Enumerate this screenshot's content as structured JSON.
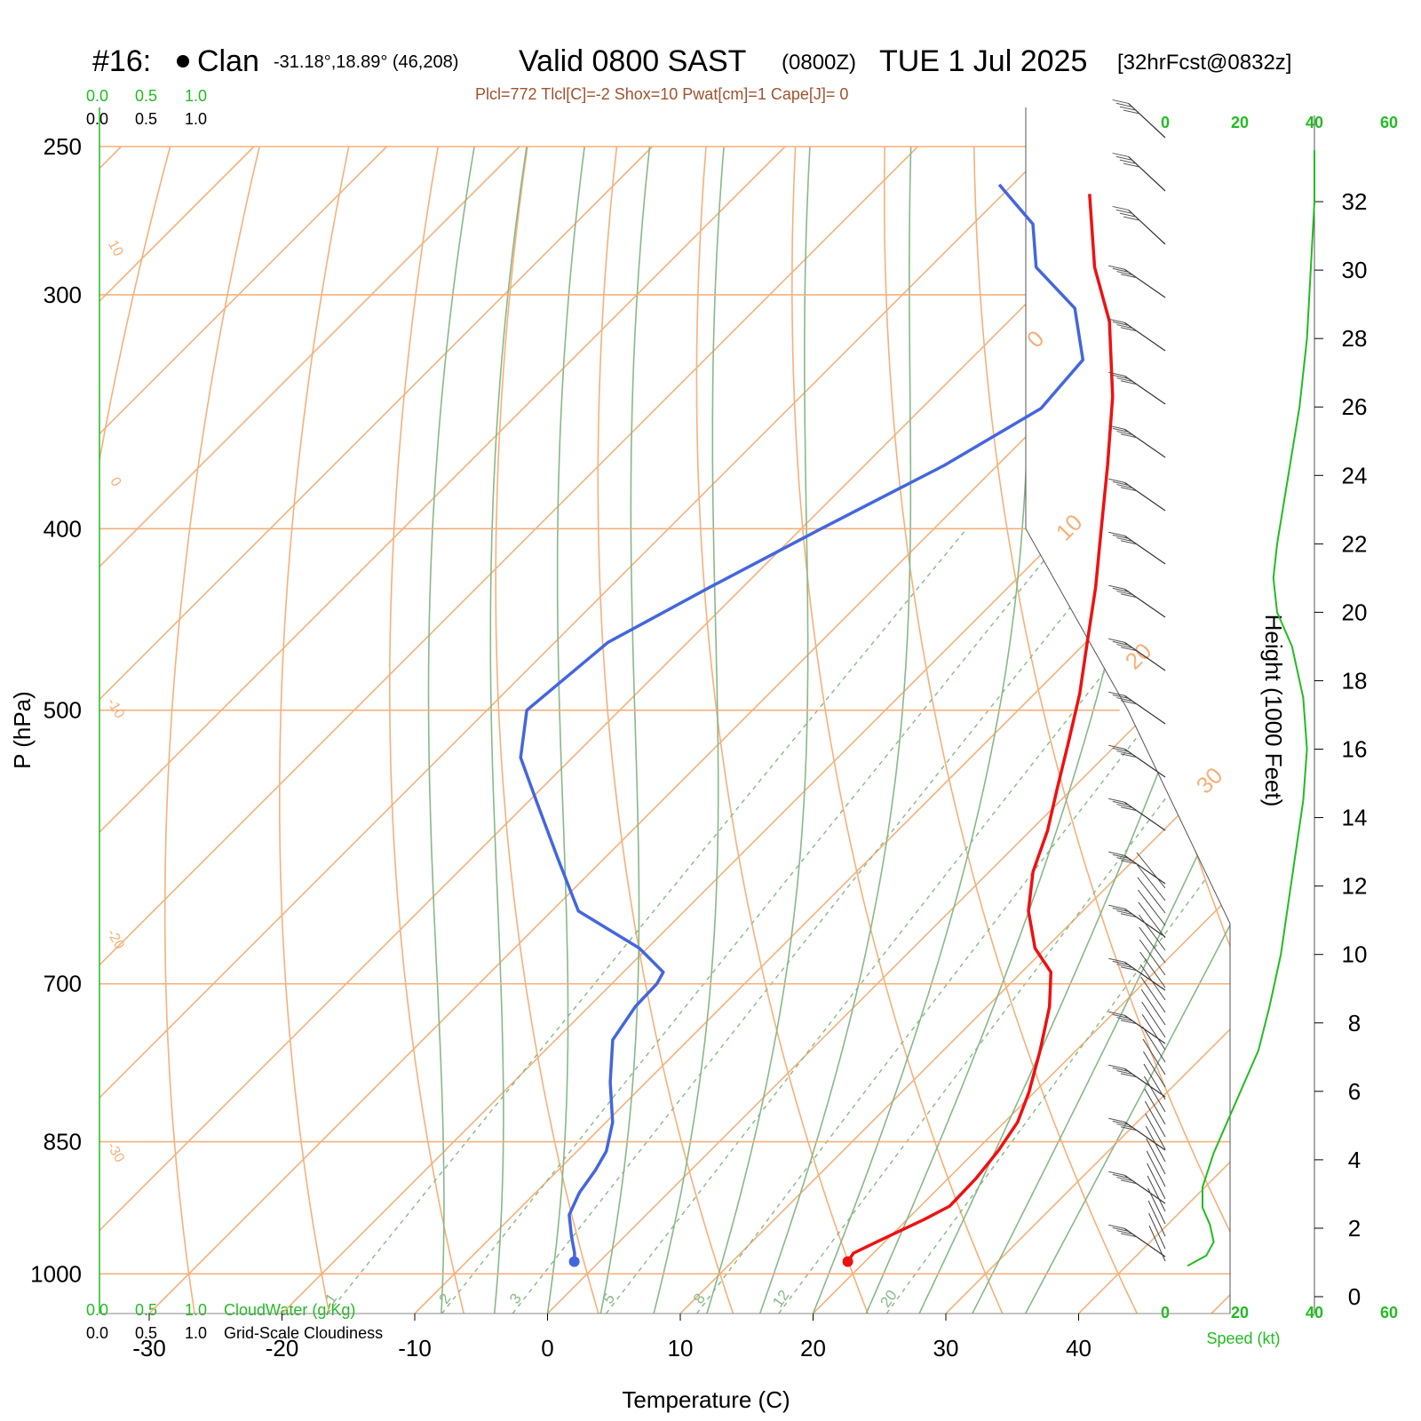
{
  "header": {
    "station": "#16:",
    "station_name": "Clan",
    "coords": "-31.18°,18.89° (46,208)",
    "valid": "Valid 0800 SAST",
    "zulu": "(0800Z)",
    "date": "TUE 1 Jul 2025",
    "forecast": "[32hrFcst@0832z]"
  },
  "indices": "Plcl=772 Tlcl[C]=-2 Shox=10 Pwat[cm]=1 Cape[J]= 0",
  "scales": {
    "cloudwater_ticks": [
      "0.0",
      "0.5",
      "1.0"
    ],
    "cloudiness_ticks": [
      "0.0",
      "0.5",
      "1.0"
    ],
    "cloudwater_label": "CloudWater (g/Kg)",
    "cloudiness_label": "Grid-Scale Cloudiness",
    "speed_ticks": [
      "0",
      "20",
      "40",
      "60"
    ],
    "speed_label": "Speed (kt)"
  },
  "colors": {
    "temperature": "#ee1111",
    "dewpoint": "#4466dd",
    "isotherm": "#f5b07a",
    "adiabat": "#88b888",
    "mixing_ratio": "#88b888",
    "cloudwater": "#22bb22",
    "speed": "#22bb22"
  },
  "chart_data": {
    "type": "line",
    "title": "Valid 0800 SAST (0800Z) TUE 1 Jul 2025",
    "xlabel": "Temperature (C)",
    "ylabel": "P (hPa)",
    "y2label": "Height (1000 Feet)",
    "x_ticks": [
      "-30",
      "-20",
      "-10",
      "0",
      "10",
      "20",
      "30",
      "40"
    ],
    "y_ticks": [
      "250",
      "300",
      "400",
      "500",
      "700",
      "850",
      "1000"
    ],
    "height_ticks": [
      "0",
      "2",
      "4",
      "6",
      "8",
      "10",
      "12",
      "14",
      "16",
      "18",
      "20",
      "22",
      "24",
      "26",
      "28",
      "30",
      "32"
    ],
    "isotherm_labels": [
      "10",
      "0",
      "-10",
      "-20",
      "-30",
      "0",
      "10",
      "20",
      "30"
    ],
    "mixing_ratio_labels": [
      "1",
      "2",
      "3",
      "5",
      "8",
      "12",
      "20"
    ],
    "series": [
      {
        "name": "temperature",
        "p": [
          985,
          975,
          960,
          935,
          920,
          890,
          860,
          830,
          800,
          760,
          720,
          690,
          670,
          640,
          610,
          580,
          550,
          520,
          490,
          460,
          430,
          400,
          370,
          340,
          310,
          290,
          265
        ],
        "t": [
          18.7,
          18.5,
          19.5,
          21.3,
          22.2,
          22.1,
          21.7,
          21.0,
          19.6,
          17.3,
          14.7,
          12.2,
          9.2,
          5.9,
          3.3,
          1.3,
          -1.2,
          -3.8,
          -6.6,
          -9.9,
          -13.4,
          -17.4,
          -21.7,
          -26.5,
          -32.4,
          -37.6,
          -43.5
        ]
      },
      {
        "name": "dewpoint",
        "p": [
          985,
          975,
          955,
          930,
          905,
          880,
          860,
          830,
          790,
          750,
          720,
          700,
          690,
          670,
          640,
          600,
          560,
          530,
          500,
          460,
          430,
          400,
          370,
          345,
          325,
          305,
          290,
          275,
          262
        ],
        "t": [
          -1.9,
          -2.5,
          -4.0,
          -5.8,
          -6.7,
          -7.2,
          -7.8,
          -9.5,
          -12.7,
          -15.7,
          -16.5,
          -16.6,
          -17.0,
          -20.6,
          -28.0,
          -33.5,
          -39.3,
          -43.9,
          -47.0,
          -46.0,
          -42.5,
          -38.5,
          -34.0,
          -31.0,
          -31.5,
          -36.0,
          -42.0,
          -45.5,
          -51.0
        ]
      },
      {
        "name": "speed",
        "z": [
          0.9,
          1.2,
          1.6,
          2.1,
          2.6,
          3.2,
          4.2,
          5.2,
          6.2,
          7.2,
          8.5,
          10,
          11.5,
          13,
          14.5,
          16,
          17.5,
          19,
          20,
          21,
          22,
          24,
          26,
          28,
          30,
          32,
          33.5
        ],
        "speed": [
          6,
          11,
          13,
          12,
          10,
          10,
          13,
          17,
          21,
          25,
          28,
          31,
          33,
          35,
          37,
          38,
          37,
          34,
          30,
          29,
          30,
          33,
          36,
          38,
          39,
          40,
          40
        ]
      }
    ],
    "xlim": [
      -34,
      46
    ],
    "ylim": [
      1050,
      250
    ],
    "y2lim": [
      0,
      34
    ],
    "speed_lim": [
      0,
      60
    ]
  }
}
